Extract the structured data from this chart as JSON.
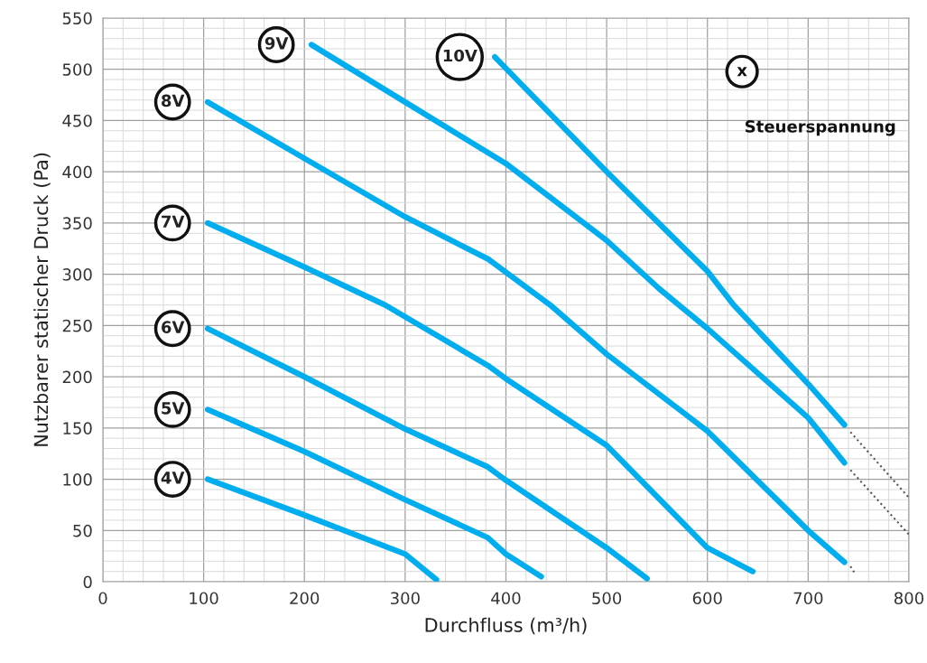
{
  "chart_data": {
    "type": "line",
    "xlabel": "Durchfluss (m³/h)",
    "ylabel": "Nutzbarer statischer Druck (Pa)",
    "xlim": [
      0,
      800
    ],
    "ylim": [
      0,
      550
    ],
    "xticks": [
      0,
      100,
      200,
      300,
      400,
      500,
      600,
      700,
      800
    ],
    "yticks": [
      0,
      50,
      100,
      150,
      200,
      250,
      300,
      350,
      400,
      450,
      500,
      550
    ],
    "grid": true,
    "legend": false,
    "marker": "none",
    "line_style": "solid",
    "annotations": [
      "x",
      "Steuerspannung"
    ],
    "series": [
      {
        "name": "4V",
        "color": "#00aeef",
        "x": [
          104,
          200,
          300,
          331
        ],
        "values": [
          100,
          65,
          27,
          2
        ]
      },
      {
        "name": "5V",
        "color": "#00aeef",
        "x": [
          104,
          200,
          300,
          382,
          400,
          435
        ],
        "values": [
          168,
          127,
          80,
          43,
          27,
          5
        ]
      },
      {
        "name": "6V",
        "color": "#00aeef",
        "x": [
          104,
          200,
          300,
          382,
          400,
          500,
          540
        ],
        "values": [
          247,
          200,
          149,
          112,
          99,
          33,
          3
        ]
      },
      {
        "name": "7V",
        "color": "#00aeef",
        "x": [
          104,
          200,
          280,
          382,
          400,
          500,
          600,
          645
        ],
        "values": [
          350,
          307,
          270,
          211,
          198,
          133,
          33,
          10
        ]
      },
      {
        "name": "8V",
        "color": "#00aeef",
        "x": [
          104,
          200,
          300,
          382,
          444,
          500,
          600,
          700,
          736
        ],
        "values": [
          468,
          413,
          356,
          315,
          270,
          222,
          147,
          50,
          19
        ]
      },
      {
        "name": "9V",
        "color": "#00aeef",
        "x": [
          207,
          300,
          400,
          500,
          552,
          600,
          700,
          736
        ],
        "values": [
          524,
          468,
          408,
          333,
          286,
          247,
          160,
          116
        ]
      },
      {
        "name": "10V",
        "color": "#00aeef",
        "x": [
          389,
          500,
          600,
          626,
          700,
          736
        ],
        "values": [
          512,
          400,
          303,
          270,
          193,
          153
        ]
      },
      {
        "color": "#555555",
        "line_style": "dotted",
        "x": [
          742,
          800
        ],
        "values": [
          146,
          82
        ]
      },
      {
        "color": "#555555",
        "line_style": "dotted",
        "x": [
          742,
          800
        ],
        "values": [
          109,
          46
        ]
      },
      {
        "color": "#555555",
        "line_style": "dotted",
        "x": [
          742,
          747
        ],
        "values": [
          15,
          7
        ]
      }
    ]
  }
}
